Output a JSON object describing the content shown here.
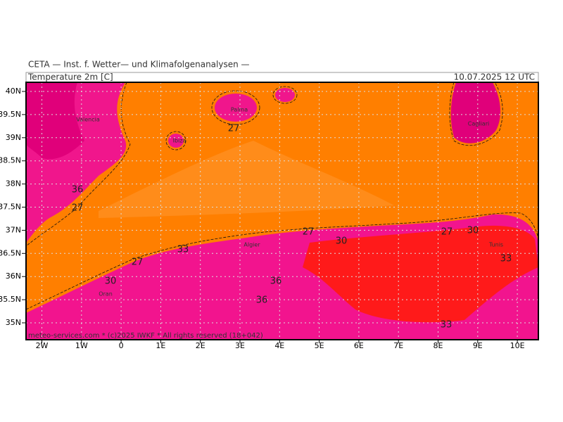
{
  "header": {
    "institute": "CETA — Inst. f. Wetter— und Klimafolgenanalysen —",
    "field": "Temperature 2m [C]",
    "valid_time": "10.07.2025 12 UTC"
  },
  "map": {
    "lat_labels": [
      "40N",
      "39.5N",
      "39N",
      "38.5N",
      "38N",
      "37.5N",
      "37N",
      "36.5N",
      "36N",
      "35.5N",
      "35N"
    ],
    "lon_labels": [
      "2W",
      "1W",
      "0",
      "1E",
      "2E",
      "3E",
      "4E",
      "5E",
      "6E",
      "7E",
      "8E",
      "9E",
      "10E"
    ],
    "contour_labels": [
      "27",
      "36",
      "27",
      "27",
      "33",
      "30",
      "27",
      "30",
      "27",
      "30",
      "33",
      "36",
      "36",
      "33"
    ],
    "places": [
      "Valencia",
      "Palma",
      "Ibiza",
      "Cagliari",
      "Tunis",
      "Algier",
      "Oran"
    ],
    "footer": "meteo-services.com * (c)2025 IWKF * All rights reserved (18+042)"
  }
}
